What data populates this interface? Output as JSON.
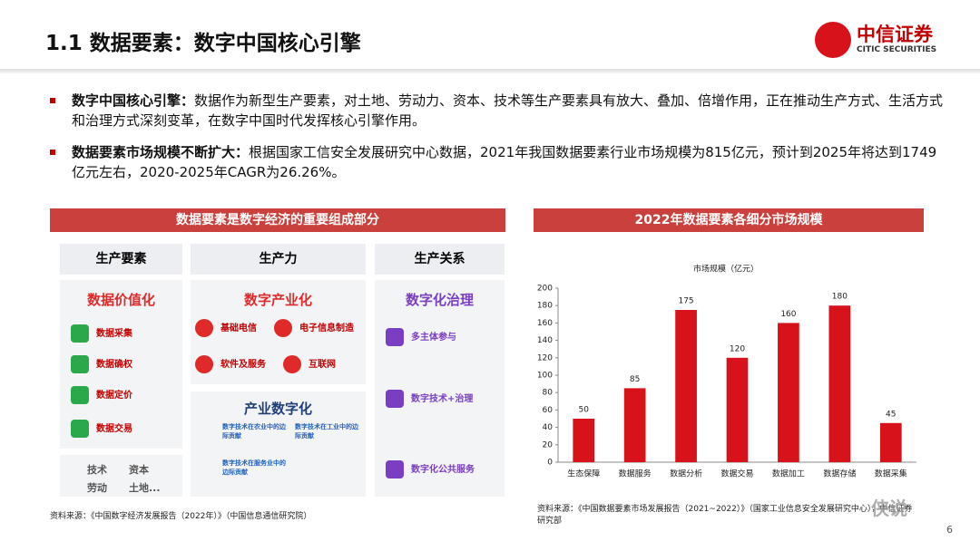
{
  "header": {
    "title": "1.1 数据要素：数字中国核心引擎",
    "logo_cn": "中信证券",
    "logo_en": "CITIC SECURITIES"
  },
  "bullets": [
    {
      "bold": "数字中国核心引擎：",
      "text": "数据作为新型生产要素，对土地、劳动力、资本、技术等生产要素具有放大、叠加、倍增作用，正在推动生产方式、生活方式和治理方式深刻变革，在数字中国时代发挥核心引擎作用。"
    },
    {
      "bold": "数据要素市场规模不断扩大：",
      "text": "根据国家工信安全发展研究中心数据，2021年我国数据要素行业市场规模为815亿元，预计到2025年将达到1749亿元左右，2020-2025年CAGR为26.26%。"
    }
  ],
  "diagram": {
    "title": "数据要素是数字经济的重要组成部分",
    "columns": [
      {
        "header": "生产要素",
        "sections": [
          {
            "title": "数据价值化",
            "items": [
              "数据采集",
              "数据确权",
              "数据定价",
              "数据交易"
            ]
          }
        ],
        "footer": [
          "技术",
          "资本",
          "劳动",
          "土地..."
        ]
      },
      {
        "header": "生产力",
        "sections": [
          {
            "title": "数字产业化",
            "items": [
              "基础电信",
              "电子信息制造",
              "软件及服务",
              "互联网"
            ]
          },
          {
            "title": "产业数字化",
            "items": [
              "数字技术在农业中的边际贡献",
              "数字技术在工业中的边际贡献",
              "数字技术在服务业中的边际贡献"
            ]
          }
        ]
      },
      {
        "header": "生产关系",
        "sections": [
          {
            "title": "数字化治理",
            "items": [
              "多主体参与",
              "数字技术+治理",
              "数字化公共服务"
            ]
          }
        ]
      }
    ],
    "source": "资料来源：《中国数字经济发展报告（2022年）》（中国信息通信研究院）"
  },
  "chart_data": {
    "type": "bar",
    "title": "2022年数据要素各细分市场规模",
    "axis_title": "市场规模（亿元）",
    "categories": [
      "生态保障",
      "数据服务",
      "数据分析",
      "数据交易",
      "数据加工",
      "数据存储",
      "数据采集"
    ],
    "values": [
      50,
      85,
      175,
      120,
      160,
      180,
      45
    ],
    "color": "#d7121a",
    "ylim": [
      0,
      200
    ],
    "yticks": [
      0,
      20,
      40,
      60,
      80,
      100,
      120,
      140,
      160,
      180,
      200
    ],
    "grid": false,
    "source": "资料来源：《中国数据要素市场发展报告（2021~2022）》（国家工业信息安全发展研究中心），中信证券研究部"
  },
  "watermark": "侠说",
  "page_number": "6"
}
